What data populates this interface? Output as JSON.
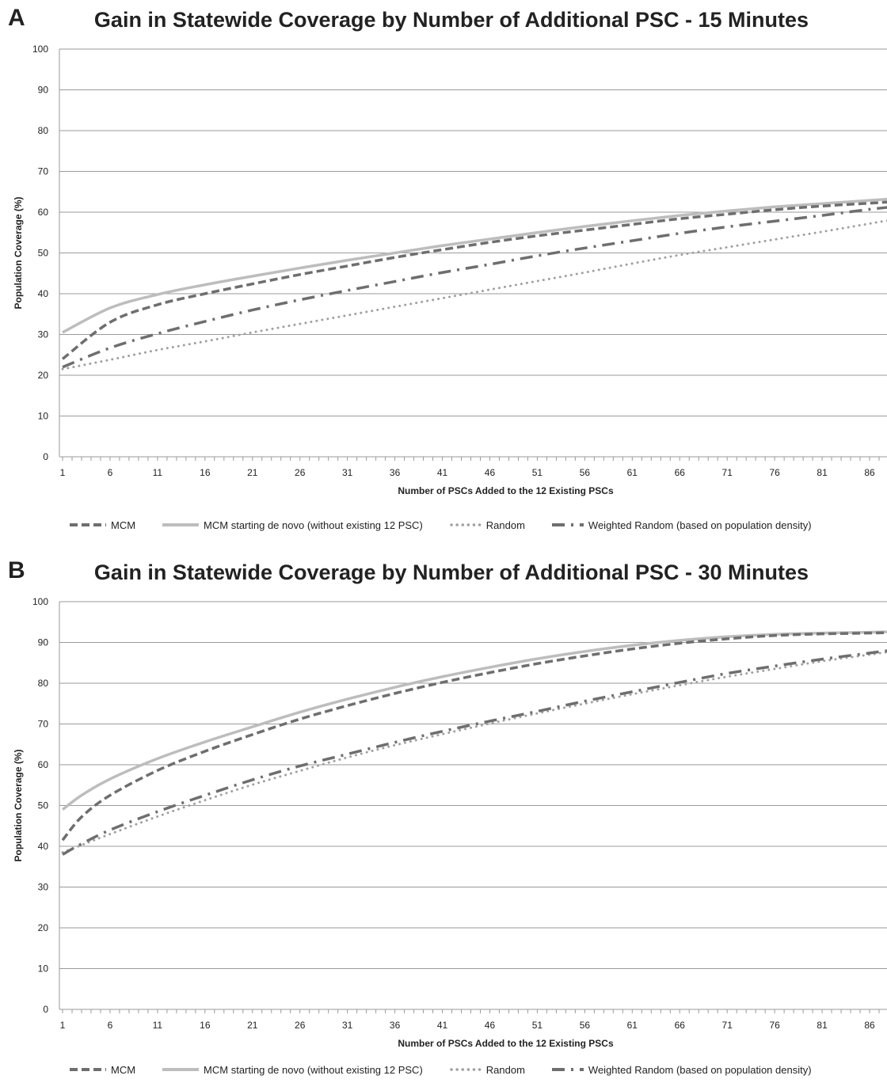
{
  "chart_data": [
    {
      "type": "line",
      "panel_label": "A",
      "title": "Gain in Statewide Coverage by Number of Additional PSC - 15 Minutes",
      "xlabel": "Number of PSCs Added to the 12 Existing PSCs",
      "ylabel": "Population Coverage (%)",
      "ylim": [
        0,
        100
      ],
      "yticks": [
        0,
        10,
        20,
        30,
        40,
        50,
        60,
        70,
        80,
        90,
        100
      ],
      "xlim": [
        1,
        88
      ],
      "xticks": [
        1,
        6,
        11,
        16,
        21,
        26,
        31,
        36,
        41,
        46,
        51,
        56,
        61,
        66,
        71,
        76,
        81,
        86
      ],
      "grid": true,
      "legend_position": "bottom",
      "x": [
        1,
        6,
        11,
        16,
        21,
        26,
        31,
        36,
        41,
        46,
        51,
        56,
        61,
        66,
        71,
        76,
        81,
        86,
        88
      ],
      "series": [
        {
          "name": "MCM",
          "style": "dash",
          "color": "#6e6e6e",
          "values": [
            24,
            33,
            37.3,
            40,
            42.4,
            44.7,
            46.8,
            48.9,
            50.8,
            52.6,
            54.2,
            55.6,
            57,
            58.4,
            59.5,
            60.6,
            61.5,
            62.2,
            62.5
          ]
        },
        {
          "name": "MCM starting de novo (without existing 12 PSC)",
          "style": "solid",
          "color": "#bdbdbd",
          "values": [
            30.5,
            36.5,
            39.8,
            42.2,
            44.3,
            46.3,
            48.2,
            50,
            51.8,
            53.4,
            55,
            56.5,
            57.9,
            59.2,
            60.3,
            61.3,
            62.1,
            62.9,
            63.2
          ]
        },
        {
          "name": "Random",
          "style": "dot",
          "color": "#a0a0a0",
          "values": [
            21.5,
            23.8,
            26.2,
            28.3,
            30.5,
            32.6,
            34.7,
            36.8,
            38.9,
            41,
            43.1,
            45.2,
            47.4,
            49.5,
            51.4,
            53.3,
            55.2,
            57.2,
            58
          ]
        },
        {
          "name": "Weighted Random (based on population density)",
          "style": "dashdot",
          "color": "#6e6e6e",
          "values": [
            22,
            26.7,
            30.2,
            33.2,
            36,
            38.5,
            40.8,
            43,
            45.2,
            47.2,
            49.3,
            51.2,
            53,
            54.8,
            56.4,
            57.8,
            59.2,
            60.7,
            61.2
          ]
        }
      ]
    },
    {
      "type": "line",
      "panel_label": "B",
      "title": "Gain in Statewide Coverage by Number of Additional PSC - 30 Minutes",
      "xlabel": "Number of PSCs Added to the 12 Existing PSCs",
      "ylabel": "Population Coverage (%)",
      "ylim": [
        0,
        100
      ],
      "yticks": [
        0,
        10,
        20,
        30,
        40,
        50,
        60,
        70,
        80,
        90,
        100
      ],
      "xlim": [
        1,
        88
      ],
      "xticks": [
        1,
        6,
        11,
        16,
        21,
        26,
        31,
        36,
        41,
        46,
        51,
        56,
        61,
        66,
        71,
        76,
        81,
        86
      ],
      "grid": true,
      "legend_position": "bottom",
      "x": [
        1,
        3,
        6,
        11,
        16,
        21,
        26,
        31,
        36,
        41,
        46,
        51,
        56,
        61,
        66,
        71,
        76,
        81,
        86,
        88
      ],
      "series": [
        {
          "name": "MCM",
          "style": "dash",
          "color": "#6e6e6e",
          "values": [
            41.5,
            47.2,
            52.5,
            58.6,
            63.3,
            67.4,
            71.2,
            74.5,
            77.5,
            80.2,
            82.6,
            84.8,
            86.7,
            88.4,
            89.8,
            90.9,
            91.7,
            92.1,
            92.3,
            92.4
          ]
        },
        {
          "name": "MCM starting de novo (without existing 12 PSC)",
          "style": "solid",
          "color": "#bdbdbd",
          "values": [
            49,
            52.5,
            56.5,
            61.5,
            65.6,
            69.3,
            72.9,
            76.1,
            79,
            81.6,
            83.9,
            86,
            87.8,
            89.3,
            90.5,
            91.4,
            92,
            92.3,
            92.5,
            92.6
          ]
        },
        {
          "name": "Random",
          "style": "dot",
          "color": "#a0a0a0",
          "values": [
            38.5,
            40.3,
            43,
            47.3,
            51.3,
            55.1,
            58.5,
            61.8,
            64.8,
            67.5,
            70.1,
            72.6,
            75,
            77.3,
            79.5,
            81.6,
            83.5,
            85.4,
            87,
            87.7
          ]
        },
        {
          "name": "Weighted Random (based on population density)",
          "style": "dashdot",
          "color": "#6e6e6e",
          "values": [
            38,
            40.6,
            44,
            48.5,
            52.5,
            56.3,
            59.7,
            62.6,
            65.5,
            68.2,
            70.7,
            73.1,
            75.6,
            77.9,
            80.2,
            82.4,
            84.2,
            85.9,
            87.4,
            88
          ]
        }
      ]
    }
  ]
}
